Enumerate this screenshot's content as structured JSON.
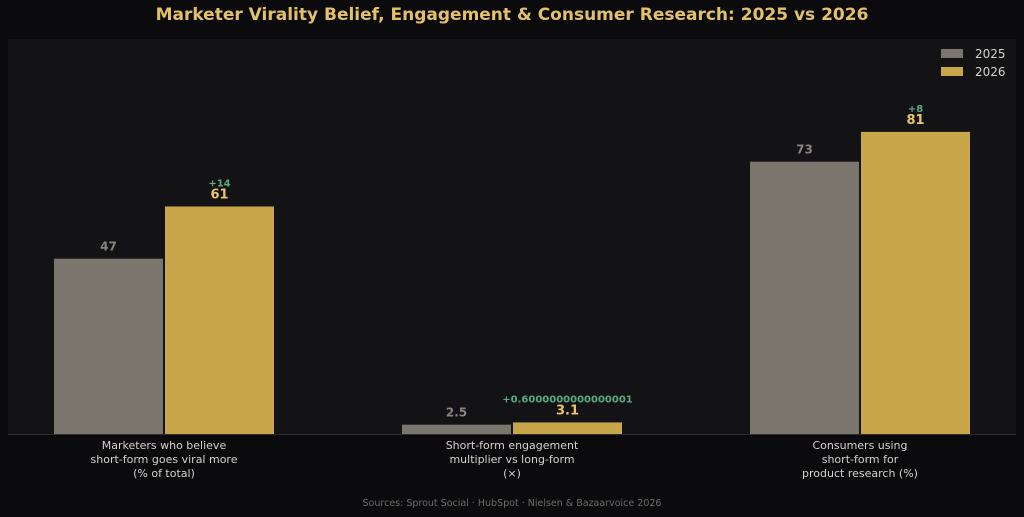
{
  "chart_data": {
    "type": "bar",
    "title": "Marketer Virality Belief, Engagement & Consumer Research: 2025 vs 2026",
    "categories": [
      "Marketers who believe\nshort-form goes viral more\n(% of total)",
      "Short-form engagement\nmultiplier vs long-form\n(×)",
      "Consumers using\nshort-form for\nproduct research (%)"
    ],
    "series": [
      {
        "name": "2025",
        "values": [
          47,
          2.5,
          73
        ],
        "color": "#7b766d",
        "label_color": "#8a857c"
      },
      {
        "name": "2026",
        "values": [
          61,
          3.1,
          81
        ],
        "color": "#c8a64a",
        "label_color": "#e8c56c"
      }
    ],
    "deltas": [
      "+14",
      "+0.6000000000000001",
      "+8"
    ],
    "delta_color": "#5aab7e",
    "value_labels": [
      [
        "47",
        "2.5",
        "73"
      ],
      [
        "61",
        "3.1",
        "81"
      ]
    ],
    "ylim": [
      0,
      105
    ],
    "grid": false,
    "legend_position": "top-right",
    "xlabel": "",
    "ylabel": ""
  },
  "footer": {
    "sources": "Sources: Sprout Social · HubSpot · Nielsen & Bazaarvoice 2026"
  }
}
